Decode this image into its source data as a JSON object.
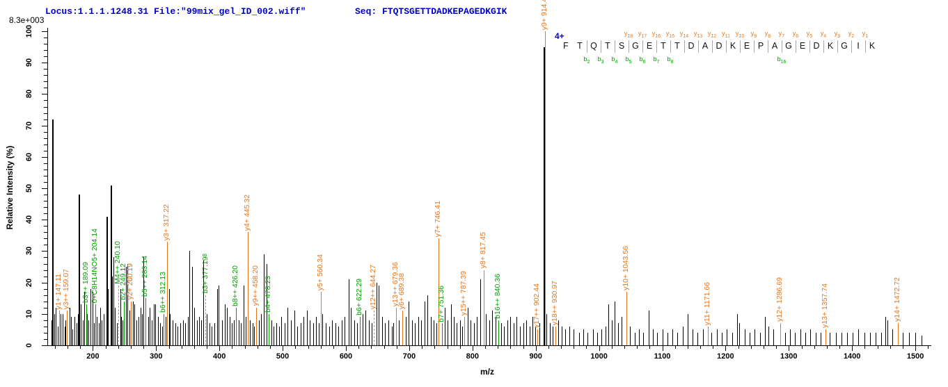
{
  "header": {
    "locus_file": "Locus:1.1.1.1248.31 File:\"99mix_gel_ID_002.wiff\"",
    "seq": "Seq: FTQTSGETTDADKEPAGEDKGIK",
    "max_intensity": "8.3e+003"
  },
  "axes": {
    "x": {
      "title": "m/z",
      "min": 128,
      "max": 1523,
      "minor_step": 20,
      "major_step": 100,
      "tick_labels": [
        "200",
        "300",
        "400",
        "500",
        "600",
        "700",
        "800",
        "900",
        "1000",
        "1100",
        "1200",
        "1300",
        "1400",
        "1500"
      ]
    },
    "y": {
      "title": "Relative  Intensity (%)",
      "min": 0,
      "max": 100,
      "minor_step": 2,
      "major_step": 10,
      "tick_labels": [
        "0",
        "10",
        "20",
        "30",
        "40",
        "50",
        "60",
        "70",
        "80",
        "90",
        "100"
      ]
    }
  },
  "peptide": {
    "charge_label": "4+",
    "sequence": [
      "F",
      "T",
      "Q",
      "T",
      "S",
      "G",
      "E",
      "T",
      "T",
      "D",
      "A",
      "D",
      "K",
      "E",
      "P",
      "A",
      "G",
      "E",
      "D",
      "K",
      "G",
      "I",
      "K"
    ],
    "dividers": [
      2,
      3,
      4,
      5,
      6,
      7,
      8,
      9,
      10,
      11,
      12,
      13,
      14,
      15,
      16,
      17,
      18,
      19,
      20,
      21,
      22
    ],
    "y_markers": [
      [
        5,
        "y",
        "18"
      ],
      [
        6,
        "y",
        "17"
      ],
      [
        7,
        "y",
        "16"
      ],
      [
        8,
        "y",
        "15"
      ],
      [
        9,
        "y",
        "14"
      ],
      [
        10,
        "y",
        "13"
      ],
      [
        11,
        "y",
        "12"
      ],
      [
        12,
        "y",
        "11"
      ],
      [
        13,
        "y",
        "10"
      ],
      [
        14,
        "y",
        "9"
      ],
      [
        15,
        "y",
        "8"
      ],
      [
        16,
        "y",
        "7"
      ],
      [
        17,
        "y",
        "6"
      ],
      [
        18,
        "y",
        "5"
      ],
      [
        19,
        "y",
        "4"
      ],
      [
        20,
        "y",
        "3"
      ],
      [
        21,
        "y",
        "2"
      ],
      [
        22,
        "y",
        "1"
      ]
    ],
    "b_markers": [
      [
        2,
        "b",
        "2"
      ],
      [
        3,
        "b",
        "3"
      ],
      [
        4,
        "b",
        "4"
      ],
      [
        5,
        "b",
        "5"
      ],
      [
        6,
        "b",
        "6"
      ],
      [
        7,
        "b",
        "7"
      ],
      [
        8,
        "b",
        "8"
      ],
      [
        16,
        "b",
        "16"
      ]
    ]
  },
  "colors": {
    "y_ion": "#E8751A",
    "b_ion": "#00A000",
    "header_blue": "#0000C8",
    "axis": "#000000",
    "divider_gray": "#A8A8A8",
    "dashed_line": "#9A9A9A",
    "peak_black": "#000000"
  },
  "chart_data": {
    "type": "bar",
    "subtype": "centroided MS/MS mass spectrum",
    "title": "",
    "xlabel": "m/z",
    "ylabel": "Relative  Intensity (%)",
    "xlim": [
      128,
      1523
    ],
    "ylim": [
      0,
      100
    ],
    "max_intensity_annotation": "8.3e+003",
    "labeled_peaks": [
      {
        "mz": 147.11,
        "pct": 11,
        "ion": "y",
        "label": "y1+ 147.11"
      },
      {
        "mz": 159.07,
        "pct": 11,
        "ion": "y",
        "label": "y3++ 159.07"
      },
      {
        "mz": 189.09,
        "pct": 13,
        "ion": "b",
        "label": "b3++ 189.09"
      },
      {
        "mz": 204.14,
        "pct": 13,
        "ion": "b",
        "label": "0+C8H14NO5+ 204.14"
      },
      {
        "mz": 240.1,
        "pct": 19,
        "ion": "b",
        "label": "M4++ 240.10",
        "dash": true
      },
      {
        "mz": 249.12,
        "pct": 14,
        "ion": "b",
        "label": "b2+ 249.12"
      },
      {
        "mz": 260.19,
        "pct": 14,
        "ion": "y",
        "label": "y2+ 260.19"
      },
      {
        "mz": 283.14,
        "pct": 15,
        "ion": "b",
        "label": "b5++ 283.14"
      },
      {
        "mz": 312.13,
        "pct": 10,
        "ion": "b",
        "label": "b6++ 312.13"
      },
      {
        "mz": 317.22,
        "pct": 33,
        "ion": "y",
        "label": "y3+ 317.22"
      },
      {
        "mz": 377.19,
        "pct": 16,
        "ion": "b",
        "label": "b3+ 377.19",
        "sup": "8",
        "dash": true
      },
      {
        "mz": 426.2,
        "pct": 12,
        "ion": "b",
        "label": "b8++ 426.20"
      },
      {
        "mz": 445.32,
        "pct": 36,
        "ion": "y",
        "label": "y4+ 445.32"
      },
      {
        "mz": 458.2,
        "pct": 12,
        "ion": "y",
        "label": "y9++ 458.20"
      },
      {
        "mz": 478.23,
        "pct": 10,
        "ion": "b",
        "label": "b4+ 478.23"
      },
      {
        "mz": 560.34,
        "pct": 17,
        "ion": "y",
        "label": "y5+ 560.34"
      },
      {
        "mz": 622.29,
        "pct": 9,
        "ion": "b",
        "label": "b6+ 622.29"
      },
      {
        "mz": 644.27,
        "pct": 11,
        "ion": "y",
        "label": "y12++ 644.27",
        "dash": true
      },
      {
        "mz": 679.36,
        "pct": 12,
        "ion": "y",
        "label": "y13++ 679.36"
      },
      {
        "mz": 689.38,
        "pct": 11,
        "ion": "y",
        "label": "y6+ 689.38"
      },
      {
        "mz": 746.41,
        "pct": 34,
        "ion": "y",
        "label": "y7+ 746.41"
      },
      {
        "mz": 751.36,
        "pct": 7,
        "ion": "b",
        "label": "b7+ 751.36"
      },
      {
        "mz": 787.39,
        "pct": 9,
        "ion": "y",
        "label": "y15++ 787.39"
      },
      {
        "mz": 817.45,
        "pct": 24,
        "ion": "y",
        "label": "y8+ 817.45"
      },
      {
        "mz": 840.36,
        "pct": 8,
        "ion": "b",
        "label": "b16++ 840.36"
      },
      {
        "mz": 902.44,
        "pct": 5,
        "ion": "y",
        "label": "y17++ 902.44"
      },
      {
        "mz": 914.49,
        "pct": 100,
        "ion": "y",
        "label": "y9+ 914.49"
      },
      {
        "mz": 930.97,
        "pct": 6,
        "ion": "y",
        "label": "y18++ 930.97"
      },
      {
        "mz": 1043.56,
        "pct": 17,
        "ion": "y",
        "label": "y10+ 1043.56"
      },
      {
        "mz": 1171.66,
        "pct": 6,
        "ion": "y",
        "label": "y11+ 1171.66"
      },
      {
        "mz": 1286.69,
        "pct": 7,
        "ion": "y",
        "label": "y12+ 1286.69"
      },
      {
        "mz": 1357.74,
        "pct": 5,
        "ion": "y",
        "label": "y13+ 1357.74"
      },
      {
        "mz": 1472.72,
        "pct": 7,
        "ion": "y",
        "label": "y14+ 1472.72"
      }
    ],
    "unlabeled_peaks": [
      [
        134,
        8
      ],
      [
        136,
        72
      ],
      [
        139,
        10
      ],
      [
        141,
        12
      ],
      [
        144,
        6
      ],
      [
        149,
        10
      ],
      [
        152,
        10
      ],
      [
        155,
        6
      ],
      [
        157,
        8
      ],
      [
        163,
        12
      ],
      [
        165,
        9
      ],
      [
        168,
        5
      ],
      [
        171,
        9
      ],
      [
        174,
        7
      ],
      [
        176,
        10
      ],
      [
        178,
        48
      ],
      [
        181,
        13
      ],
      [
        184,
        8
      ],
      [
        186,
        17
      ],
      [
        191,
        10
      ],
      [
        193,
        8
      ],
      [
        196,
        18
      ],
      [
        199,
        17
      ],
      [
        202,
        7
      ],
      [
        206,
        9
      ],
      [
        209,
        7
      ],
      [
        212,
        12
      ],
      [
        214,
        8
      ],
      [
        217,
        10
      ],
      [
        221,
        41
      ],
      [
        224,
        18
      ],
      [
        228,
        51
      ],
      [
        230,
        22
      ],
      [
        232,
        28
      ],
      [
        235,
        12
      ],
      [
        238,
        7
      ],
      [
        243,
        18
      ],
      [
        245,
        9
      ],
      [
        247,
        8
      ],
      [
        252,
        25
      ],
      [
        255,
        26
      ],
      [
        258,
        11
      ],
      [
        263,
        14
      ],
      [
        266,
        13
      ],
      [
        269,
        8
      ],
      [
        272,
        9
      ],
      [
        275,
        12
      ],
      [
        278,
        10
      ],
      [
        280,
        28
      ],
      [
        287,
        9
      ],
      [
        290,
        12
      ],
      [
        293,
        8
      ],
      [
        296,
        13
      ],
      [
        299,
        13
      ],
      [
        303,
        9
      ],
      [
        306,
        7
      ],
      [
        309,
        6
      ],
      [
        315,
        9
      ],
      [
        320,
        18
      ],
      [
        322,
        10
      ],
      [
        326,
        8
      ],
      [
        330,
        7
      ],
      [
        334,
        6
      ],
      [
        338,
        7
      ],
      [
        342,
        8
      ],
      [
        346,
        7
      ],
      [
        350,
        9
      ],
      [
        352,
        30
      ],
      [
        357,
        25
      ],
      [
        360,
        12
      ],
      [
        364,
        8
      ],
      [
        368,
        9
      ],
      [
        371,
        8
      ],
      [
        374,
        27
      ],
      [
        380,
        10
      ],
      [
        384,
        7
      ],
      [
        388,
        6
      ],
      [
        392,
        7
      ],
      [
        396,
        18
      ],
      [
        399,
        19
      ],
      [
        404,
        8
      ],
      [
        408,
        13
      ],
      [
        412,
        12
      ],
      [
        416,
        9
      ],
      [
        420,
        7
      ],
      [
        423,
        8
      ],
      [
        430,
        8
      ],
      [
        434,
        7
      ],
      [
        438,
        19
      ],
      [
        441,
        9
      ],
      [
        448,
        8
      ],
      [
        452,
        7
      ],
      [
        455,
        6
      ],
      [
        462,
        8
      ],
      [
        466,
        10
      ],
      [
        470,
        29
      ],
      [
        474,
        26
      ],
      [
        482,
        8
      ],
      [
        486,
        6
      ],
      [
        490,
        7
      ],
      [
        494,
        6
      ],
      [
        498,
        9
      ],
      [
        503,
        7
      ],
      [
        508,
        12
      ],
      [
        513,
        8
      ],
      [
        518,
        11
      ],
      [
        523,
        6
      ],
      [
        528,
        7
      ],
      [
        533,
        9
      ],
      [
        538,
        11
      ],
      [
        543,
        8
      ],
      [
        548,
        7
      ],
      [
        553,
        9
      ],
      [
        557,
        7
      ],
      [
        563,
        10
      ],
      [
        568,
        7
      ],
      [
        573,
        6
      ],
      [
        578,
        8
      ],
      [
        583,
        7
      ],
      [
        588,
        6
      ],
      [
        593,
        8
      ],
      [
        598,
        9
      ],
      [
        604,
        21
      ],
      [
        608,
        12
      ],
      [
        613,
        8
      ],
      [
        618,
        7
      ],
      [
        626,
        10
      ],
      [
        631,
        11
      ],
      [
        636,
        8
      ],
      [
        641,
        7
      ],
      [
        648,
        20
      ],
      [
        652,
        19
      ],
      [
        657,
        9
      ],
      [
        662,
        7
      ],
      [
        667,
        8
      ],
      [
        672,
        6
      ],
      [
        675,
        7
      ],
      [
        684,
        8
      ],
      [
        694,
        9
      ],
      [
        699,
        14
      ],
      [
        704,
        8
      ],
      [
        709,
        7
      ],
      [
        714,
        9
      ],
      [
        719,
        8
      ],
      [
        724,
        14
      ],
      [
        729,
        16
      ],
      [
        734,
        9
      ],
      [
        739,
        8
      ],
      [
        743,
        7
      ],
      [
        756,
        12
      ],
      [
        760,
        8
      ],
      [
        766,
        13
      ],
      [
        770,
        9
      ],
      [
        775,
        7
      ],
      [
        780,
        8
      ],
      [
        784,
        6
      ],
      [
        792,
        12
      ],
      [
        797,
        8
      ],
      [
        802,
        7
      ],
      [
        807,
        9
      ],
      [
        812,
        21
      ],
      [
        821,
        10
      ],
      [
        826,
        8
      ],
      [
        831,
        11
      ],
      [
        836,
        9
      ],
      [
        845,
        7
      ],
      [
        850,
        6
      ],
      [
        855,
        8
      ],
      [
        860,
        9
      ],
      [
        865,
        7
      ],
      [
        870,
        9
      ],
      [
        875,
        6
      ],
      [
        880,
        7
      ],
      [
        885,
        8
      ],
      [
        890,
        6
      ],
      [
        895,
        9
      ],
      [
        899,
        6
      ],
      [
        906,
        7
      ],
      [
        912,
        95
      ],
      [
        917,
        10
      ],
      [
        922,
        7
      ],
      [
        927,
        6
      ],
      [
        936,
        8
      ],
      [
        941,
        6
      ],
      [
        947,
        5
      ],
      [
        953,
        6
      ],
      [
        960,
        5
      ],
      [
        968,
        4
      ],
      [
        975,
        5
      ],
      [
        982,
        4
      ],
      [
        990,
        5
      ],
      [
        997,
        4
      ],
      [
        1004,
        5
      ],
      [
        1010,
        6
      ],
      [
        1015,
        13
      ],
      [
        1020,
        8
      ],
      [
        1025,
        14
      ],
      [
        1030,
        7
      ],
      [
        1036,
        9
      ],
      [
        1049,
        6
      ],
      [
        1056,
        4
      ],
      [
        1063,
        5
      ],
      [
        1070,
        4
      ],
      [
        1078,
        11
      ],
      [
        1085,
        5
      ],
      [
        1092,
        4
      ],
      [
        1100,
        5
      ],
      [
        1108,
        4
      ],
      [
        1116,
        5
      ],
      [
        1124,
        4
      ],
      [
        1132,
        6
      ],
      [
        1140,
        10
      ],
      [
        1148,
        5
      ],
      [
        1156,
        4
      ],
      [
        1164,
        5
      ],
      [
        1178,
        4
      ],
      [
        1186,
        5
      ],
      [
        1194,
        4
      ],
      [
        1202,
        5
      ],
      [
        1210,
        4
      ],
      [
        1218,
        10
      ],
      [
        1222,
        7
      ],
      [
        1230,
        5
      ],
      [
        1238,
        4
      ],
      [
        1246,
        5
      ],
      [
        1254,
        4
      ],
      [
        1262,
        9
      ],
      [
        1268,
        6
      ],
      [
        1275,
        5
      ],
      [
        1294,
        4
      ],
      [
        1302,
        5
      ],
      [
        1310,
        4
      ],
      [
        1318,
        5
      ],
      [
        1326,
        4
      ],
      [
        1334,
        5
      ],
      [
        1342,
        4
      ],
      [
        1350,
        4
      ],
      [
        1365,
        4
      ],
      [
        1374,
        4
      ],
      [
        1383,
        4
      ],
      [
        1392,
        4
      ],
      [
        1401,
        4
      ],
      [
        1410,
        5
      ],
      [
        1419,
        4
      ],
      [
        1428,
        4
      ],
      [
        1437,
        4
      ],
      [
        1446,
        4
      ],
      [
        1452,
        9
      ],
      [
        1456,
        8
      ],
      [
        1464,
        5
      ],
      [
        1480,
        4
      ],
      [
        1490,
        4
      ],
      [
        1500,
        4
      ],
      [
        1510,
        3
      ]
    ]
  }
}
